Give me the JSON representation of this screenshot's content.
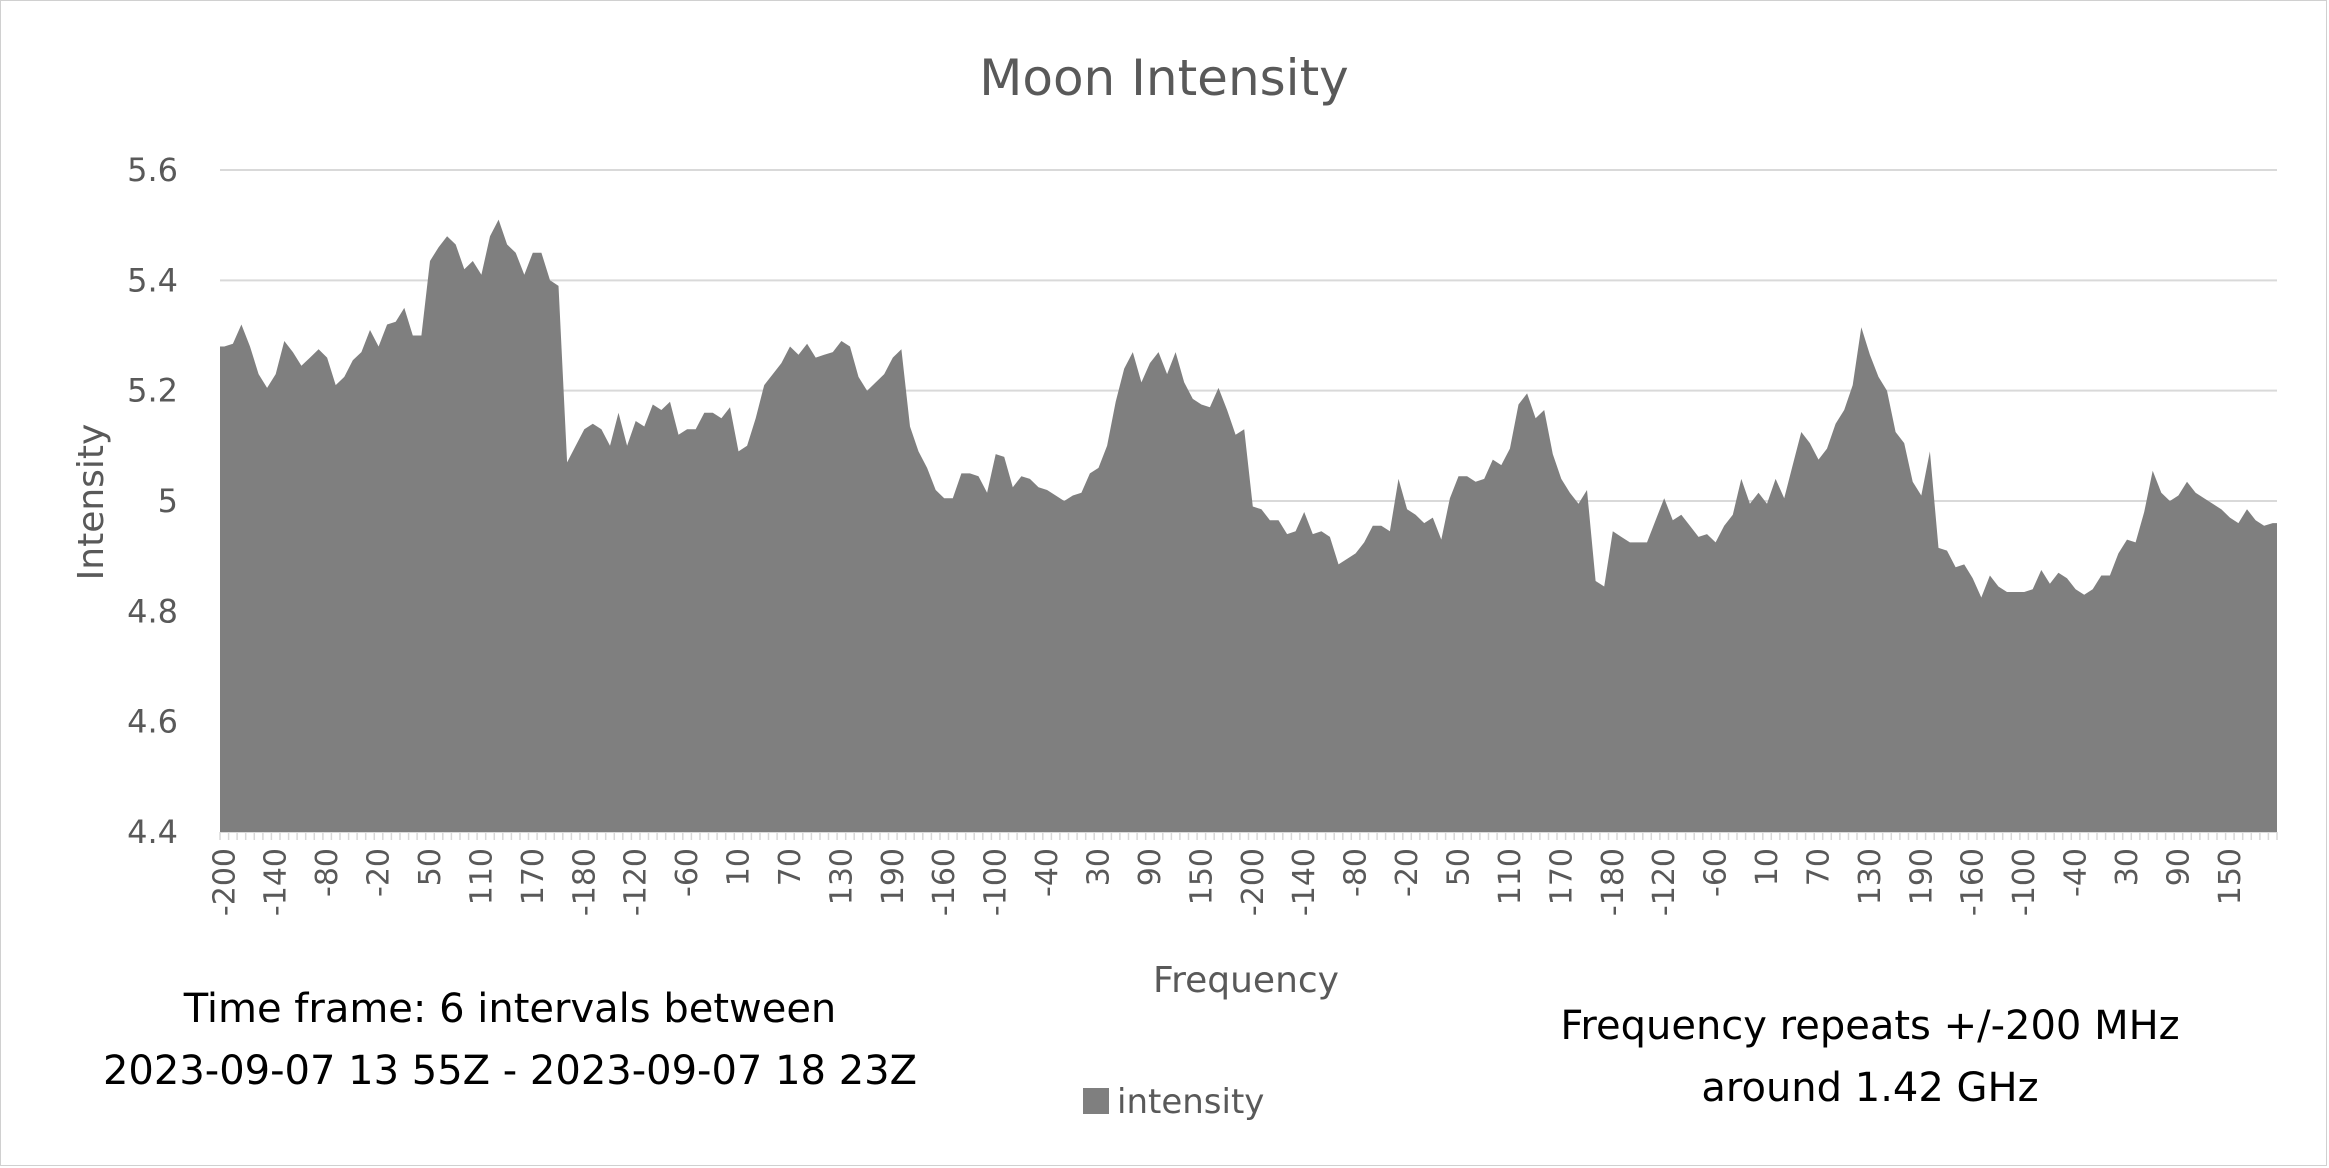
{
  "chart_data": {
    "type": "area",
    "title": "Moon Intensity",
    "xlabel": "Frequency",
    "ylabel": "Intensity",
    "ylim": [
      4.4,
      5.6
    ],
    "yticks": [
      "4.4",
      "4.6",
      "4.8",
      "5",
      "5.2",
      "5.4",
      "5.6"
    ],
    "grid": true,
    "legend_position": "bottom",
    "fill_color": "#7f7f7f",
    "series": [
      {
        "name": "intensity",
        "values": [
          5.28,
          5.285,
          5.32,
          5.28,
          5.23,
          5.205,
          5.23,
          5.29,
          5.27,
          5.245,
          5.26,
          5.275,
          5.26,
          5.21,
          5.225,
          5.255,
          5.27,
          5.31,
          5.28,
          5.32,
          5.325,
          5.35,
          5.3,
          5.3,
          5.435,
          5.46,
          5.48,
          5.465,
          5.42,
          5.435,
          5.41,
          5.48,
          5.51,
          5.465,
          5.45,
          5.41,
          5.45,
          5.45,
          5.4,
          5.39,
          5.07,
          5.1,
          5.13,
          5.14,
          5.13,
          5.1,
          5.16,
          5.1,
          5.145,
          5.135,
          5.175,
          5.165,
          5.18,
          5.12,
          5.13,
          5.13,
          5.16,
          5.16,
          5.15,
          5.17,
          5.09,
          5.1,
          5.15,
          5.21,
          5.23,
          5.25,
          5.28,
          5.265,
          5.285,
          5.26,
          5.265,
          5.27,
          5.29,
          5.28,
          5.225,
          5.2,
          5.215,
          5.23,
          5.26,
          5.275,
          5.135,
          5.09,
          5.06,
          5.02,
          5.005,
          5.005,
          5.05,
          5.05,
          5.045,
          5.015,
          5.085,
          5.08,
          5.025,
          5.045,
          5.04,
          5.025,
          5.02,
          5.01,
          5,
          5.01,
          5.015,
          5.05,
          5.06,
          5.1,
          5.18,
          5.24,
          5.27,
          5.215,
          5.25,
          5.27,
          5.23,
          5.27,
          5.215,
          5.185,
          5.175,
          5.17,
          5.205,
          5.165,
          5.12,
          5.13,
          4.99,
          4.985,
          4.965,
          4.965,
          4.94,
          4.945,
          4.98,
          4.94,
          4.945,
          4.935,
          4.885,
          4.895,
          4.905,
          4.925,
          4.955,
          4.955,
          4.945,
          5.04,
          4.985,
          4.975,
          4.96,
          4.97,
          4.93,
          5.005,
          5.045,
          5.045,
          5.035,
          5.04,
          5.075,
          5.065,
          5.095,
          5.175,
          5.195,
          5.15,
          5.165,
          5.085,
          5.04,
          5.015,
          4.995,
          5.02,
          4.855,
          4.845,
          4.945,
          4.935,
          4.925,
          4.925,
          4.925,
          4.965,
          5.005,
          4.965,
          4.975,
          4.955,
          4.935,
          4.94,
          4.925,
          4.955,
          4.975,
          5.04,
          4.995,
          5.015,
          4.995,
          5.04,
          5.005,
          5.065,
          5.125,
          5.105,
          5.075,
          5.095,
          5.14,
          5.165,
          5.21,
          5.315,
          5.265,
          5.225,
          5.2,
          5.125,
          5.105,
          5.035,
          5.01,
          5.09,
          4.915,
          4.91,
          4.88,
          4.885,
          4.86,
          4.825,
          4.865,
          4.845,
          4.835,
          4.835,
          4.835,
          4.84,
          4.875,
          4.85,
          4.87,
          4.86,
          4.84,
          4.83,
          4.84,
          4.865,
          4.865,
          4.905,
          4.93,
          4.925,
          4.98,
          5.055,
          5.015,
          5,
          5.01,
          5.035,
          5.015,
          5.005,
          4.995,
          4.985,
          4.97,
          4.96,
          4.985,
          4.965,
          4.955,
          4.96
        ]
      }
    ],
    "x_tick_labels": [
      "-200",
      "-140",
      "-80",
      "-20",
      "50",
      "110",
      "170",
      "-180",
      "-120",
      "-60",
      "10",
      "70",
      "130",
      "190",
      "-160",
      "-100",
      "-40",
      "30",
      "90",
      "150",
      "-200",
      "-140",
      "-80",
      "-20",
      "50",
      "110",
      "170",
      "-180",
      "-120",
      "-60",
      "10",
      "70",
      "130",
      "190",
      "-160",
      "-100",
      "-40",
      "30",
      "90",
      "150"
    ]
  },
  "notes": {
    "left_line1": "Time frame: 6 intervals between",
    "left_line2": "2023-09-07  13 55Z - 2023-09-07  18 23Z",
    "right_line1": "Frequency repeats +/-200 MHz",
    "right_line2": "around 1.42 GHz"
  }
}
